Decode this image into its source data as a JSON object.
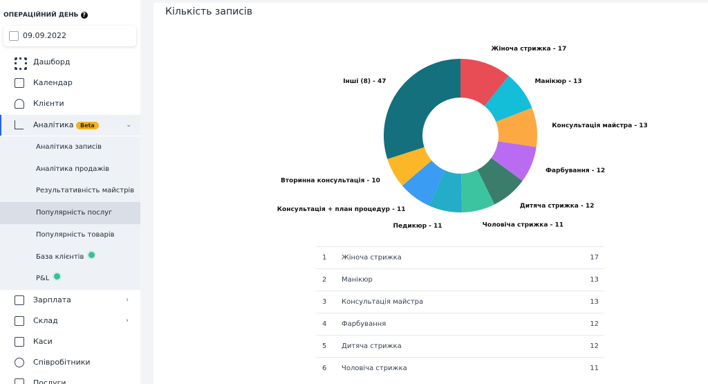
{
  "sidebar": {
    "section_title": "ОПЕРАЦІЙНИЙ ДЕНЬ",
    "date": "09.09.2022",
    "menu": [
      {
        "label": "Дашборд"
      },
      {
        "label": "Календар"
      },
      {
        "label": "Клієнти"
      },
      {
        "label": "Аналітика",
        "badge": "Beta",
        "children": [
          "Аналітика записів",
          "Аналітика продажів",
          "Результативність майстрів",
          "Популярність послуг",
          "Популярність товарів",
          "База клієнтів",
          "P&L"
        ]
      },
      {
        "label": "Зарплата"
      },
      {
        "label": "Склад"
      },
      {
        "label": "Каси"
      },
      {
        "label": "Співробітники"
      },
      {
        "label": "Послуги"
      }
    ]
  },
  "main": {
    "title": "Кількість записів"
  },
  "chart_data": {
    "type": "donut",
    "categories": [
      "Жіноча стрижка",
      "Манікюр",
      "Консультація майстра",
      "Фарбування",
      "Дитяча стрижка",
      "Чоловіча стрижка",
      "Педикюр",
      "Консультація + план процедур",
      "Вторинна консультація",
      "Інші (8)"
    ],
    "values": [
      17,
      13,
      13,
      12,
      12,
      11,
      11,
      11,
      10,
      47
    ],
    "value_labels": [
      "Жіноча стрижка - 17",
      "Манікюр - 13",
      "Консультація майстра - 13",
      "Фарбування - 12",
      "Дитяча стрижка - 12",
      "Чоловіча стрижка - 11",
      "Педикюр - 11",
      "Консультація + план процедур - 11",
      "Вторинна консультація - 10",
      "Інші (8) - 47"
    ],
    "colors": [
      "#e84c55",
      "#14bdd8",
      "#fda943",
      "#b96cf2",
      "#3a7d6a",
      "#3cc4a0",
      "#25acc8",
      "#3a9cf2",
      "#fbb728",
      "#13707c"
    ]
  },
  "table": {
    "rows": [
      [
        1,
        "Жіноча стрижка",
        17
      ],
      [
        2,
        "Манікюр",
        13
      ],
      [
        3,
        "Консультація майстра",
        13
      ],
      [
        4,
        "Фарбування",
        12
      ],
      [
        5,
        "Дитяча стрижка",
        12
      ],
      [
        6,
        "Чоловіча стрижка",
        11
      ]
    ]
  }
}
